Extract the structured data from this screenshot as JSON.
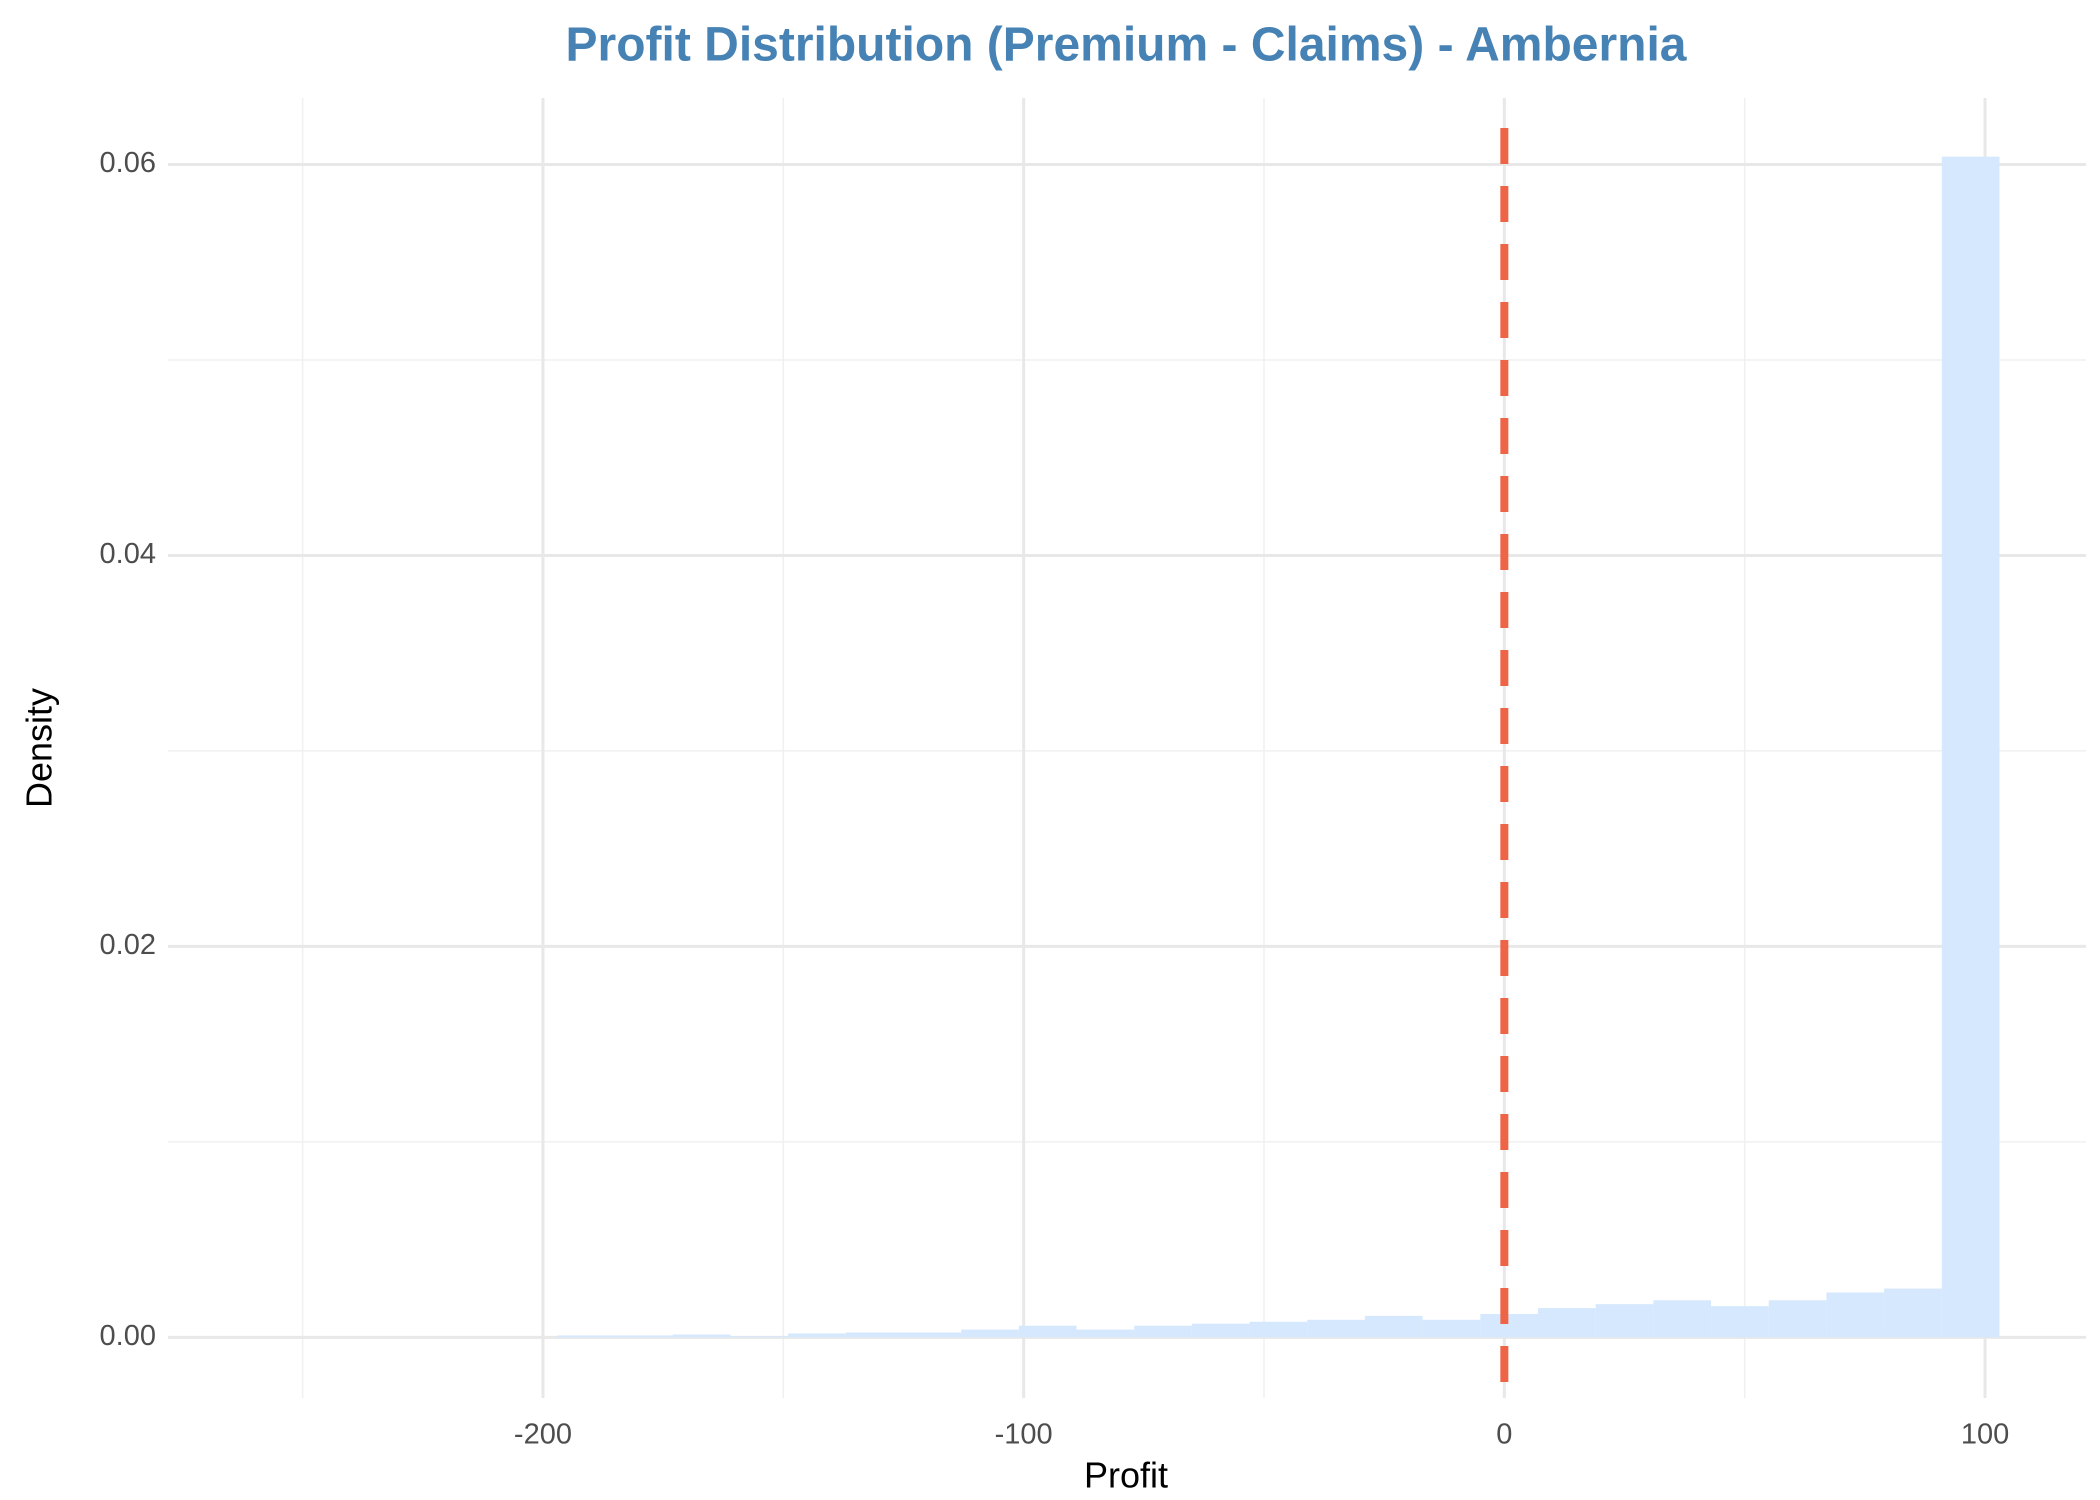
{
  "chart_data": {
    "type": "histogram",
    "title": "Profit Distribution (Premium - Claims) - Ambernia",
    "x_label": "Profit",
    "y_label": "Density",
    "bins": [
      -197,
      -185,
      -173,
      -161,
      -149,
      -137,
      -125,
      -113,
      -101,
      -89,
      -77,
      -65,
      -53,
      -41,
      -29,
      -17,
      -5,
      7,
      19,
      31,
      43,
      55,
      67,
      79,
      91,
      103
    ],
    "values": [
      0.0001,
      0.0001,
      0.00015,
      5e-05,
      0.0002,
      0.00025,
      0.00025,
      0.0004,
      0.0006,
      0.0004,
      0.0006,
      0.0007,
      0.0008,
      0.0009,
      0.0011,
      0.0009,
      0.0012,
      0.0015,
      0.0017,
      0.0019,
      0.0016,
      0.0019,
      0.0023,
      0.0025,
      0.0604
    ],
    "color": "#d6e8fd",
    "vline": 0,
    "vline_color": "#ee6446",
    "xlim": [
      -278,
      121
    ],
    "xticks": [
      -200,
      -100,
      0,
      100
    ],
    "x_minor_ticks": [
      -250,
      -150,
      -50,
      50
    ],
    "ylim": [
      -0.0031,
      0.0634
    ],
    "yticks": [
      {
        "value": 0,
        "label": "0.00"
      },
      {
        "value": 0.02,
        "label": "0.02"
      },
      {
        "value": 0.04,
        "label": "0.04"
      },
      {
        "value": 0.06,
        "label": "0.06"
      }
    ],
    "y_minor_ticks": [
      0.01,
      0.03,
      0.05
    ],
    "grid": true
  }
}
